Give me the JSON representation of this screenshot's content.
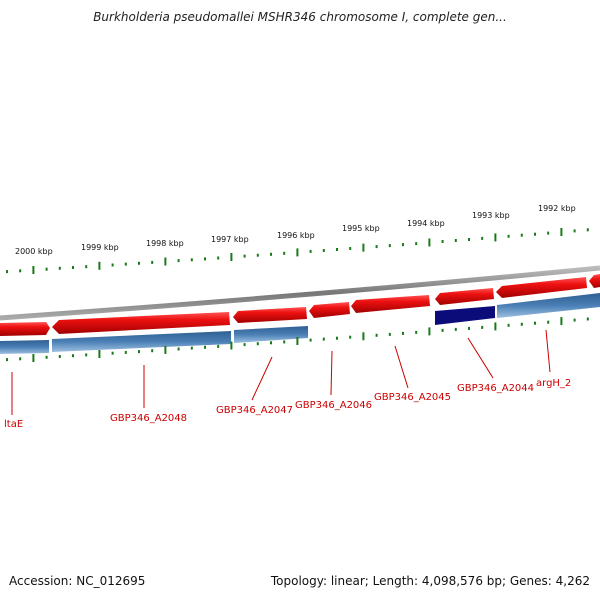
{
  "title": "Burkholderia pseudomallei MSHR346 chromosome I, complete gen...",
  "footer": {
    "accession": "Accession: NC_012695",
    "summary": "Topology: linear; Length: 4,098,576 bp; Genes: 4,262"
  },
  "kbp_labels": [
    "2000 kbp",
    "1999 kbp",
    "1998 kbp",
    "1997 kbp",
    "1996 kbp",
    "1995 kbp",
    "1994 kbp",
    "1993 kbp",
    "1992 kbp"
  ],
  "genes": [
    {
      "label": "ltaE",
      "strand": "forward"
    },
    {
      "label": "GBP346_A2048",
      "strand": "reverse"
    },
    {
      "label": "GBP346_A2047",
      "strand": "reverse"
    },
    {
      "label": "GBP346_A2046",
      "strand": "reverse"
    },
    {
      "label": "GBP346_A2045",
      "strand": "reverse"
    },
    {
      "label": "GBP346_A2044",
      "strand": "reverse"
    },
    {
      "label": "argH_2",
      "strand": "forward"
    }
  ],
  "colors": {
    "gene_red": "#ee1111",
    "cds_blue": "#4a7fb5",
    "highlight_navy": "#0b0b7a",
    "tick_green": "#1a7a1a",
    "label_red": "#cc0000",
    "backbone_grey": "#888888"
  }
}
